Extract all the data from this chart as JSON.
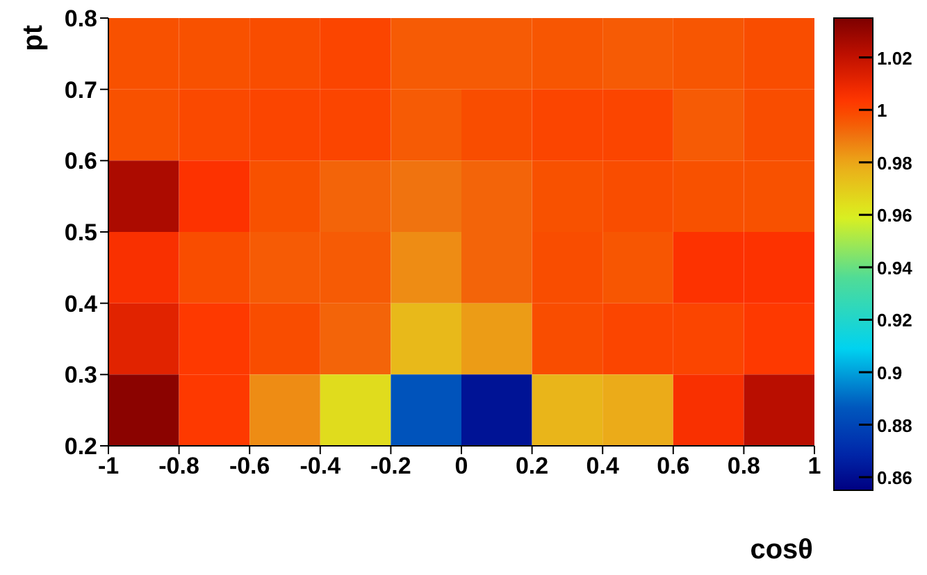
{
  "chart_data": {
    "type": "heatmap",
    "xlabel": "cosθ",
    "ylabel": "pt",
    "xlim": [
      -1,
      1
    ],
    "xticks": [
      -1,
      -0.8,
      -0.6,
      -0.4,
      -0.2,
      0,
      0.2,
      0.4,
      0.6,
      0.8,
      1
    ],
    "ylim": [
      0.2,
      0.8
    ],
    "yticks": [
      0.2,
      0.3,
      0.4,
      0.5,
      0.6,
      0.7,
      0.8
    ],
    "clim": [
      0.855,
      1.035
    ],
    "cticks": [
      0.86,
      0.88,
      0.9,
      0.92,
      0.94,
      0.96,
      0.98,
      1,
      1.02
    ],
    "cells": [
      [
        0.997,
        0.997,
        0.998,
        1.0,
        0.995,
        0.995,
        0.996,
        0.995,
        0.996,
        0.998
      ],
      [
        0.997,
        0.999,
        1.0,
        1.0,
        0.995,
        0.998,
        1.0,
        1.0,
        0.995,
        0.998
      ],
      [
        1.025,
        1.005,
        0.997,
        0.993,
        0.99,
        0.993,
        0.997,
        0.998,
        0.997,
        0.997
      ],
      [
        1.006,
        0.998,
        0.995,
        0.995,
        0.985,
        0.993,
        0.998,
        0.996,
        1.005,
        1.005
      ],
      [
        1.012,
        1.003,
        0.998,
        0.993,
        0.975,
        0.982,
        0.998,
        1.0,
        1.0,
        1.003
      ],
      [
        1.032,
        1.003,
        0.985,
        0.965,
        0.885,
        0.862,
        0.976,
        0.979,
        1.006,
        1.022
      ]
    ]
  }
}
